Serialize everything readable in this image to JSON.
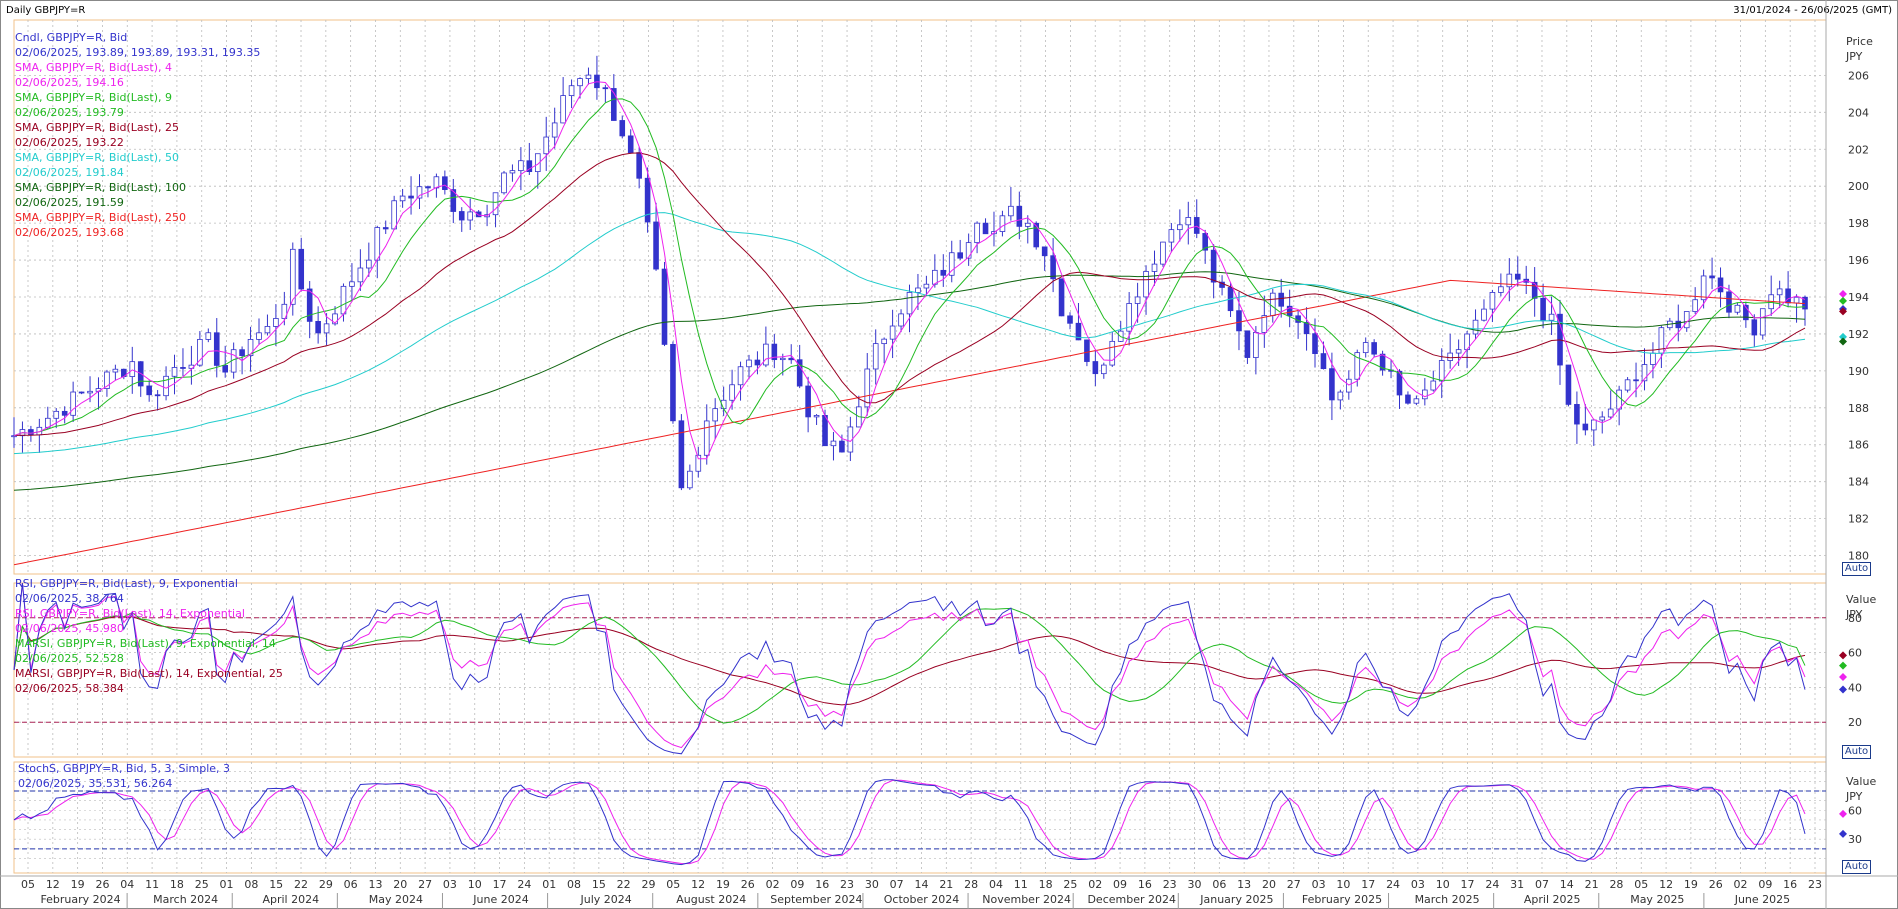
{
  "window": {
    "title": "Daily GBPJPY=R",
    "range": "31/01/2024 - 26/06/2025 (GMT)"
  },
  "price_panel": {
    "axis_header": [
      "Price",
      "JPY"
    ],
    "auto_label": "Auto",
    "legend": [
      {
        "name": "Cndl, GBPJPY=R, Bid",
        "value": "02/06/2025, 193.89, 193.89, 193.31, 193.35",
        "color": "#3333cc"
      },
      {
        "name": "SMA, GBPJPY=R, Bid(Last), 4",
        "value": "02/06/2025, 194.16",
        "color": "#ee22ee"
      },
      {
        "name": "SMA, GBPJPY=R, Bid(Last), 9",
        "value": "02/06/2025, 193.79",
        "color": "#22bb22"
      },
      {
        "name": "SMA, GBPJPY=R, Bid(Last), 25",
        "value": "02/06/2025, 193.22",
        "color": "#990022"
      },
      {
        "name": "SMA, GBPJPY=R, Bid(Last), 50",
        "value": "02/06/2025, 191.84",
        "color": "#22cccc"
      },
      {
        "name": "SMA, GBPJPY=R, Bid(Last), 100",
        "value": "02/06/2025, 191.59",
        "color": "#116611"
      },
      {
        "name": "SMA, GBPJPY=R, Bid(Last), 250",
        "value": "02/06/2025, 193.68",
        "color": "#ee2222"
      }
    ]
  },
  "rsi_panel": {
    "axis_header": [
      "Value",
      "JPY"
    ],
    "auto_label": "Auto",
    "legend": [
      {
        "name": "RSI, GBPJPY=R, Bid(Last), 9, Exponential",
        "value": "02/06/2025, 38.764",
        "color": "#3333cc"
      },
      {
        "name": "RSI, GBPJPY=R, Bid(Last), 14, Exponential",
        "value": "02/06/2025, 45.980",
        "color": "#ee22ee"
      },
      {
        "name": "MARSI, GBPJPY=R, Bid(Last), 9, Exponential, 14",
        "value": "02/06/2025, 52.528",
        "color": "#22bb22"
      },
      {
        "name": "MARSI, GBPJPY=R, Bid(Last), 14, Exponential, 25",
        "value": "02/06/2025, 58.384",
        "color": "#990022"
      }
    ]
  },
  "stoch_panel": {
    "axis_header": [
      "Value",
      "JPY"
    ],
    "auto_label": "Auto",
    "legend": [
      {
        "name": "StochS, GBPJPY=R, Bid, 5, 3, Simple, 3",
        "value": "02/06/2025, 35.531, 56.264",
        "color": "#3333cc"
      }
    ]
  },
  "chart_data": {
    "type": "candlestick",
    "colors": {
      "candle": "#3333cc",
      "sma4": "#ee22ee",
      "sma9": "#22bb22",
      "sma25": "#990022",
      "sma50": "#22cccc",
      "sma100": "#116611",
      "sma250": "#ee2222",
      "grid": "#bbbbbb"
    },
    "price_axis": {
      "ylim": [
        179,
        209
      ],
      "ticks": [
        180,
        182,
        184,
        186,
        188,
        190,
        192,
        194,
        196,
        198,
        200,
        202,
        204,
        206
      ]
    },
    "rsi_axis": {
      "ylim": [
        0,
        100
      ],
      "ticks": [
        20,
        40,
        60,
        80
      ],
      "levels": [
        20,
        80
      ]
    },
    "stoch_axis": {
      "ylim": [
        -5,
        110
      ],
      "ticks": [
        30,
        60
      ],
      "levels": [
        20,
        80
      ]
    },
    "x_day_labels": [
      "05",
      "12",
      "19",
      "26",
      "04",
      "11",
      "18",
      "25",
      "01",
      "08",
      "15",
      "22",
      "29",
      "06",
      "13",
      "20",
      "27",
      "03",
      "10",
      "17",
      "24",
      "01",
      "08",
      "15",
      "22",
      "29",
      "05",
      "12",
      "19",
      "26",
      "02",
      "09",
      "16",
      "23",
      "30",
      "07",
      "14",
      "21",
      "28",
      "04",
      "11",
      "18",
      "25",
      "02",
      "09",
      "16",
      "23",
      "30",
      "06",
      "13",
      "20",
      "27",
      "03",
      "10",
      "17",
      "24",
      "03",
      "10",
      "17",
      "24",
      "31",
      "07",
      "14",
      "21",
      "28",
      "05",
      "12",
      "19",
      "26",
      "02",
      "09",
      "16",
      "23"
    ],
    "x_months": [
      "February 2024",
      "March 2024",
      "April 2024",
      "May 2024",
      "June 2024",
      "July 2024",
      "August 2024",
      "September 2024",
      "October 2024",
      "November 2024",
      "December 2024",
      "January 2025",
      "February 2025",
      "March 2025",
      "April 2025",
      "May 2025",
      "June 2025"
    ],
    "price_keypoints": [
      [
        0,
        186.5
      ],
      [
        4,
        187.5
      ],
      [
        9,
        189
      ],
      [
        14,
        190.5
      ],
      [
        16,
        188.5
      ],
      [
        19,
        190.2
      ],
      [
        23,
        191.5
      ],
      [
        25,
        190.0
      ],
      [
        28,
        191.8
      ],
      [
        30,
        192.2
      ],
      [
        32,
        194
      ],
      [
        33,
        196
      ],
      [
        35,
        193
      ],
      [
        36,
        192
      ],
      [
        38,
        193.5
      ],
      [
        42,
        196.5
      ],
      [
        46,
        199.5
      ],
      [
        50,
        200.2
      ],
      [
        53,
        198.5
      ],
      [
        56,
        199
      ],
      [
        58,
        200.5
      ],
      [
        61,
        201
      ],
      [
        64,
        203.5
      ],
      [
        66,
        205.5
      ],
      [
        68,
        206.3
      ],
      [
        70,
        205
      ],
      [
        72,
        203
      ],
      [
        74,
        200
      ],
      [
        76,
        195
      ],
      [
        78,
        187
      ],
      [
        79,
        183.5
      ],
      [
        80,
        184.5
      ],
      [
        82,
        187.5
      ],
      [
        86,
        190
      ],
      [
        90,
        191.2
      ],
      [
        92,
        190.5
      ],
      [
        94,
        188
      ],
      [
        96,
        186
      ],
      [
        98,
        185.5
      ],
      [
        100,
        188.5
      ],
      [
        102,
        191
      ],
      [
        104,
        193
      ],
      [
        106,
        194
      ],
      [
        108,
        194.5
      ],
      [
        110,
        195.5
      ],
      [
        112,
        196.5
      ],
      [
        114,
        198.5
      ],
      [
        116,
        197.5
      ],
      [
        118,
        198.5
      ],
      [
        120,
        198
      ],
      [
        122,
        196.5
      ],
      [
        124,
        193.5
      ],
      [
        126,
        192
      ],
      [
        128,
        189.5
      ],
      [
        130,
        192
      ],
      [
        132,
        193.5
      ],
      [
        134,
        195.5
      ],
      [
        136,
        197
      ],
      [
        138,
        198.5
      ],
      [
        140,
        197.5
      ],
      [
        142,
        195
      ],
      [
        144,
        193
      ],
      [
        146,
        191
      ],
      [
        148,
        193.5
      ],
      [
        150,
        194
      ],
      [
        152,
        193
      ],
      [
        154,
        191.5
      ],
      [
        156,
        188.5
      ],
      [
        158,
        189.5
      ],
      [
        160,
        191.5
      ],
      [
        162,
        190.5
      ],
      [
        164,
        188.5
      ],
      [
        166,
        188
      ],
      [
        168,
        189.5
      ],
      [
        170,
        190.5
      ],
      [
        172,
        192
      ],
      [
        174,
        193
      ],
      [
        176,
        194.5
      ],
      [
        178,
        194.8
      ],
      [
        180,
        194
      ],
      [
        182,
        192.5
      ],
      [
        184,
        188
      ],
      [
        186,
        186.5
      ],
      [
        188,
        187.5
      ],
      [
        190,
        188.5
      ],
      [
        192,
        190
      ],
      [
        194,
        191
      ],
      [
        196,
        192.5
      ],
      [
        198,
        193
      ],
      [
        200,
        195.5
      ],
      [
        202,
        194.5
      ],
      [
        204,
        193
      ],
      [
        206,
        192.5
      ],
      [
        208,
        194.5
      ],
      [
        210,
        194
      ],
      [
        212,
        193.4
      ]
    ],
    "rsi9_last": 38.764,
    "rsi14_last": 45.98,
    "marsi9_last": 52.528,
    "marsi14_last": 58.384,
    "stoch_last": [
      35.531,
      56.264
    ],
    "right_markers": {
      "price": [
        {
          "value": 194.16,
          "color": "#ee22ee"
        },
        {
          "value": 193.79,
          "color": "#22bb22"
        },
        {
          "value": 193.35,
          "color": "#3333cc"
        },
        {
          "value": 193.22,
          "color": "#990022"
        },
        {
          "value": 191.84,
          "color": "#22cccc"
        },
        {
          "value": 191.59,
          "color": "#116611"
        }
      ],
      "rsi": [
        {
          "value": 58.384,
          "color": "#990022"
        },
        {
          "value": 52.528,
          "color": "#22bb22"
        },
        {
          "value": 45.98,
          "color": "#ee22ee"
        },
        {
          "value": 38.764,
          "color": "#3333cc"
        }
      ],
      "stoch": [
        {
          "value": 56.264,
          "color": "#ee22ee"
        },
        {
          "value": 35.531,
          "color": "#3333cc"
        }
      ]
    }
  }
}
